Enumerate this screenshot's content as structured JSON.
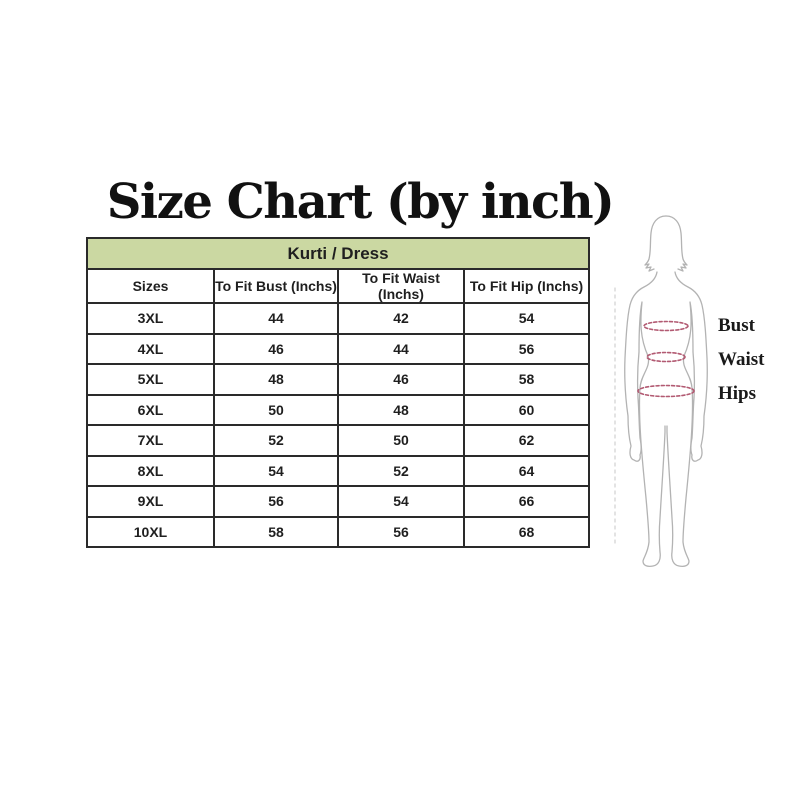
{
  "title": "Size Chart (by inch)",
  "table": {
    "group_header": "Kurti / Dress",
    "columns": [
      "Sizes",
      "To Fit Bust (Inchs)",
      "To Fit Waist (Inchs)",
      "To Fit Hip (Inchs)"
    ],
    "rows": [
      [
        "3XL",
        "44",
        "42",
        "54"
      ],
      [
        "4XL",
        "46",
        "44",
        "56"
      ],
      [
        "5XL",
        "48",
        "46",
        "58"
      ],
      [
        "6XL",
        "50",
        "48",
        "60"
      ],
      [
        "7XL",
        "52",
        "50",
        "62"
      ],
      [
        "8XL",
        "54",
        "52",
        "64"
      ],
      [
        "9XL",
        "56",
        "54",
        "66"
      ],
      [
        "10XL",
        "58",
        "56",
        "68"
      ]
    ]
  },
  "figure": {
    "labels": [
      "Bust",
      "Waist",
      "Hips"
    ]
  },
  "colors": {
    "group_header_bg": "#cbd8a2",
    "table_border": "#2a2a2a",
    "text": "#1f1f1f",
    "silhouette_outline": "#b3b3b3",
    "measure_band": "#b25a72",
    "height_line": "#d0d0d0"
  }
}
